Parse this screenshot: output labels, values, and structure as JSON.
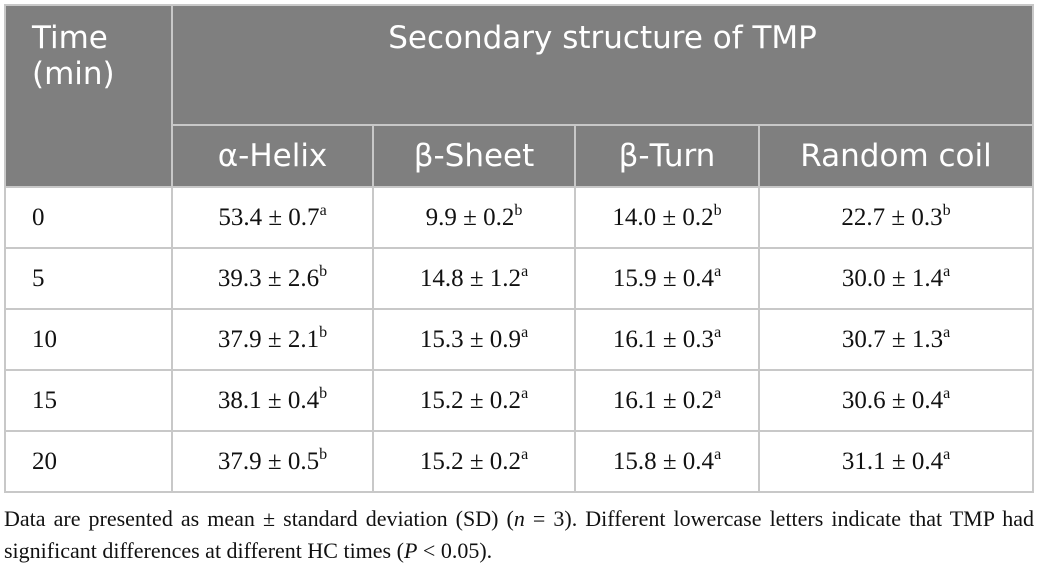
{
  "table": {
    "header": {
      "time": "Time (min)",
      "group": "Secondary structure of TMP",
      "columns": [
        "α-Helix",
        "β-Sheet",
        "β-Turn",
        "Random coil"
      ]
    },
    "rows": [
      {
        "time": "0",
        "cells": [
          {
            "v": "53.4 ± 0.7",
            "s": "a"
          },
          {
            "v": "9.9 ± 0.2",
            "s": "b"
          },
          {
            "v": "14.0 ± 0.2",
            "s": "b"
          },
          {
            "v": "22.7 ± 0.3",
            "s": "b"
          }
        ]
      },
      {
        "time": "5",
        "cells": [
          {
            "v": "39.3 ± 2.6",
            "s": "b"
          },
          {
            "v": "14.8 ± 1.2",
            "s": "a"
          },
          {
            "v": "15.9 ± 0.4",
            "s": "a"
          },
          {
            "v": "30.0 ± 1.4",
            "s": "a"
          }
        ]
      },
      {
        "time": "10",
        "cells": [
          {
            "v": "37.9 ± 2.1",
            "s": "b"
          },
          {
            "v": "15.3 ± 0.9",
            "s": "a"
          },
          {
            "v": "16.1 ± 0.3",
            "s": "a"
          },
          {
            "v": "30.7 ± 1.3",
            "s": "a"
          }
        ]
      },
      {
        "time": "15",
        "cells": [
          {
            "v": "38.1 ± 0.4",
            "s": "b"
          },
          {
            "v": "15.2 ± 0.2",
            "s": "a"
          },
          {
            "v": "16.1 ± 0.2",
            "s": "a"
          },
          {
            "v": "30.6 ± 0.4",
            "s": "a"
          }
        ]
      },
      {
        "time": "20",
        "cells": [
          {
            "v": "37.9 ± 0.5",
            "s": "b"
          },
          {
            "v": "15.2 ± 0.2",
            "s": "a"
          },
          {
            "v": "15.8 ± 0.4",
            "s": "a"
          },
          {
            "v": "31.1 ± 0.4",
            "s": "a"
          }
        ]
      }
    ]
  },
  "footnote": {
    "part1": "Data are presented as mean ± standard deviation (SD) (",
    "n_italic": "n",
    "part2": " = 3). Different lowercase letters indicate that TMP had significant differences at different HC times (",
    "p_italic": "P",
    "part3": " < 0.05)."
  }
}
